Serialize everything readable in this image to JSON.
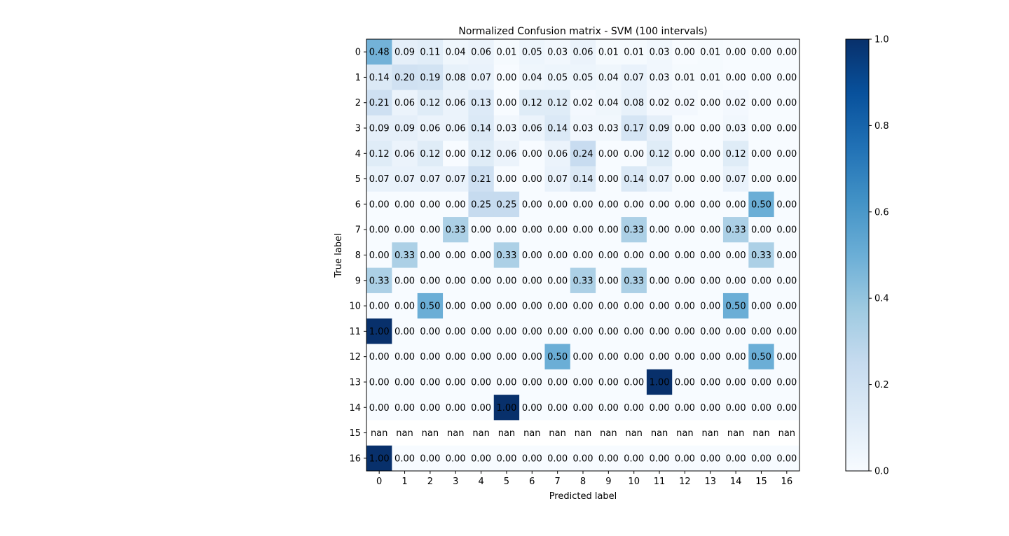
{
  "chart_data": {
    "type": "heatmap",
    "title": "Normalized Confusion matrix - SVM (100 intervals)",
    "xlabel": "Predicted label",
    "ylabel": "True label",
    "x_tick_labels": [
      "0",
      "1",
      "2",
      "3",
      "4",
      "5",
      "6",
      "7",
      "8",
      "9",
      "10",
      "11",
      "12",
      "13",
      "14",
      "15",
      "16"
    ],
    "y_tick_labels": [
      "0",
      "1",
      "2",
      "3",
      "4",
      "5",
      "6",
      "7",
      "8",
      "9",
      "10",
      "11",
      "12",
      "13",
      "14",
      "15",
      "16"
    ],
    "colormap": "Blues",
    "vmin": 0.0,
    "vmax": 1.0,
    "colorbar_ticks": [
      "0.0",
      "0.2",
      "0.4",
      "0.6",
      "0.8",
      "1.0"
    ],
    "cell_labels": [
      [
        "0.48",
        "0.09",
        "0.11",
        "0.04",
        "0.06",
        "0.01",
        "0.05",
        "0.03",
        "0.06",
        "0.01",
        "0.01",
        "0.03",
        "0.00",
        "0.01",
        "0.00",
        "0.00",
        "0.00"
      ],
      [
        "0.14",
        "0.20",
        "0.19",
        "0.08",
        "0.07",
        "0.00",
        "0.04",
        "0.05",
        "0.05",
        "0.04",
        "0.07",
        "0.03",
        "0.01",
        "0.01",
        "0.00",
        "0.00",
        "0.00"
      ],
      [
        "0.21",
        "0.06",
        "0.12",
        "0.06",
        "0.13",
        "0.00",
        "0.12",
        "0.12",
        "0.02",
        "0.04",
        "0.08",
        "0.02",
        "0.02",
        "0.00",
        "0.02",
        "0.00",
        "0.00"
      ],
      [
        "0.09",
        "0.09",
        "0.06",
        "0.06",
        "0.14",
        "0.03",
        "0.06",
        "0.14",
        "0.03",
        "0.03",
        "0.17",
        "0.09",
        "0.00",
        "0.00",
        "0.03",
        "0.00",
        "0.00"
      ],
      [
        "0.12",
        "0.06",
        "0.12",
        "0.00",
        "0.12",
        "0.06",
        "0.00",
        "0.06",
        "0.24",
        "0.00",
        "0.00",
        "0.12",
        "0.00",
        "0.00",
        "0.12",
        "0.00",
        "0.00"
      ],
      [
        "0.07",
        "0.07",
        "0.07",
        "0.07",
        "0.21",
        "0.00",
        "0.00",
        "0.07",
        "0.14",
        "0.00",
        "0.14",
        "0.07",
        "0.00",
        "0.00",
        "0.07",
        "0.00",
        "0.00"
      ],
      [
        "0.00",
        "0.00",
        "0.00",
        "0.00",
        "0.25",
        "0.25",
        "0.00",
        "0.00",
        "0.00",
        "0.00",
        "0.00",
        "0.00",
        "0.00",
        "0.00",
        "0.00",
        "0.50",
        "0.00"
      ],
      [
        "0.00",
        "0.00",
        "0.00",
        "0.33",
        "0.00",
        "0.00",
        "0.00",
        "0.00",
        "0.00",
        "0.00",
        "0.33",
        "0.00",
        "0.00",
        "0.00",
        "0.33",
        "0.00",
        "0.00"
      ],
      [
        "0.00",
        "0.33",
        "0.00",
        "0.00",
        "0.00",
        "0.33",
        "0.00",
        "0.00",
        "0.00",
        "0.00",
        "0.00",
        "0.00",
        "0.00",
        "0.00",
        "0.00",
        "0.33",
        "0.00"
      ],
      [
        "0.33",
        "0.00",
        "0.00",
        "0.00",
        "0.00",
        "0.00",
        "0.00",
        "0.00",
        "0.33",
        "0.00",
        "0.33",
        "0.00",
        "0.00",
        "0.00",
        "0.00",
        "0.00",
        "0.00"
      ],
      [
        "0.00",
        "0.00",
        "0.50",
        "0.00",
        "0.00",
        "0.00",
        "0.00",
        "0.00",
        "0.00",
        "0.00",
        "0.00",
        "0.00",
        "0.00",
        "0.00",
        "0.50",
        "0.00",
        "0.00"
      ],
      [
        "1.00",
        "0.00",
        "0.00",
        "0.00",
        "0.00",
        "0.00",
        "0.00",
        "0.00",
        "0.00",
        "0.00",
        "0.00",
        "0.00",
        "0.00",
        "0.00",
        "0.00",
        "0.00",
        "0.00"
      ],
      [
        "0.00",
        "0.00",
        "0.00",
        "0.00",
        "0.00",
        "0.00",
        "0.00",
        "0.50",
        "0.00",
        "0.00",
        "0.00",
        "0.00",
        "0.00",
        "0.00",
        "0.00",
        "0.50",
        "0.00"
      ],
      [
        "0.00",
        "0.00",
        "0.00",
        "0.00",
        "0.00",
        "0.00",
        "0.00",
        "0.00",
        "0.00",
        "0.00",
        "0.00",
        "1.00",
        "0.00",
        "0.00",
        "0.00",
        "0.00",
        "0.00"
      ],
      [
        "0.00",
        "0.00",
        "0.00",
        "0.00",
        "0.00",
        "1.00",
        "0.00",
        "0.00",
        "0.00",
        "0.00",
        "0.00",
        "0.00",
        "0.00",
        "0.00",
        "0.00",
        "0.00",
        "0.00"
      ],
      [
        "nan",
        "nan",
        "nan",
        "nan",
        "nan",
        "nan",
        "nan",
        "nan",
        "nan",
        "nan",
        "nan",
        "nan",
        "nan",
        "nan",
        "nan",
        "nan",
        "nan"
      ],
      [
        "1.00",
        "0.00",
        "0.00",
        "0.00",
        "0.00",
        "0.00",
        "0.00",
        "0.00",
        "0.00",
        "0.00",
        "0.00",
        "0.00",
        "0.00",
        "0.00",
        "0.00",
        "0.00",
        "0.00"
      ]
    ]
  }
}
